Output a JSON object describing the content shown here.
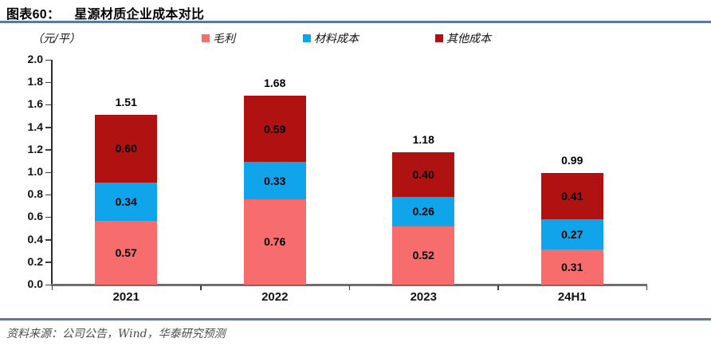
{
  "header": {
    "figure_label": "图表60：",
    "title": "星源材质企业成本对比"
  },
  "footer": {
    "source": "资料来源：公司公告，Wind，华泰研究预测"
  },
  "colors": {
    "rule_blue": "#5878A5",
    "x_axis": "#6E6E6E",
    "y_axis": "#2B2B2B",
    "tick": "#3D3D3D",
    "source_text": "#4C4C4C"
  },
  "chart_data": {
    "type": "bar",
    "stacked": true,
    "title": "星源材质企业成本对比",
    "unit_label": "（元/平）",
    "categories": [
      "2021",
      "2022",
      "2023",
      "24H1"
    ],
    "series": [
      {
        "name": "毛利",
        "color": "#F76D6D",
        "values": [
          0.57,
          0.76,
          0.52,
          0.31
        ]
      },
      {
        "name": "材料成本",
        "color": "#10A5EA",
        "values": [
          0.34,
          0.33,
          0.26,
          0.27
        ]
      },
      {
        "name": "其他成本",
        "color": "#B01111",
        "values": [
          0.6,
          0.59,
          0.4,
          0.41
        ]
      }
    ],
    "totals": [
      "1.51",
      "1.68",
      "1.18",
      "0.99"
    ],
    "ylim": [
      0,
      2.0
    ],
    "y_tick_step": 0.2,
    "y_ticks": [
      "2.0",
      "1.8",
      "1.6",
      "1.4",
      "1.2",
      "1.0",
      "0.8",
      "0.6",
      "0.4",
      "0.2",
      "0.0"
    ],
    "grid": false,
    "legend_position": "top",
    "value_format": "2dp"
  }
}
